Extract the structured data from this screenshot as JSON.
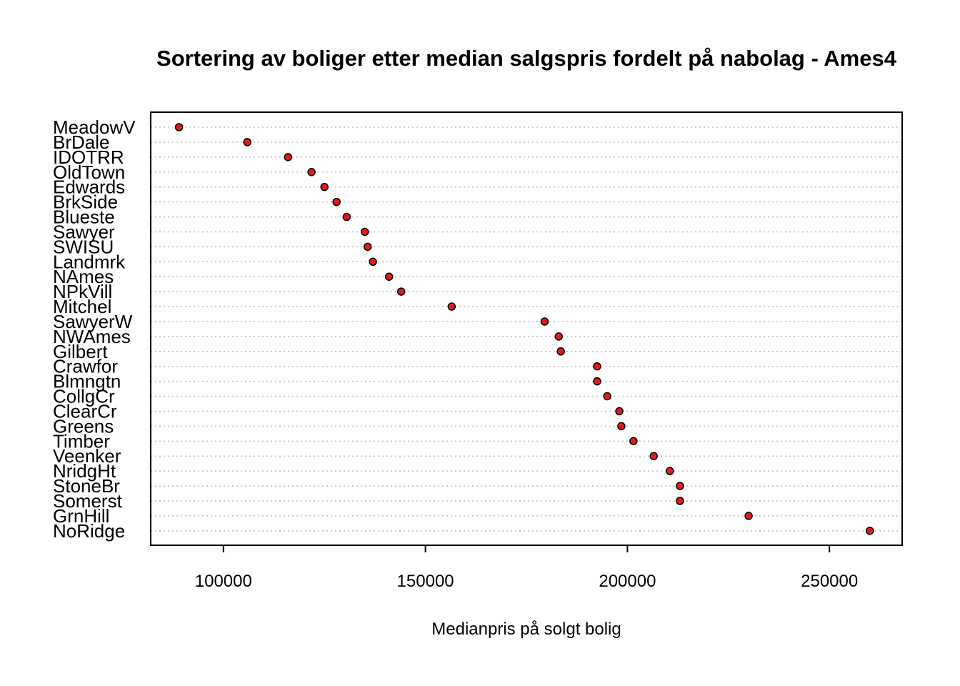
{
  "chart_data": {
    "type": "scatter",
    "title": "Sortering av boliger etter median salgspris fordelt på nabolag - Ames4",
    "xlabel": "Medianpris på solgt bolig",
    "ylabel": "",
    "xlim": [
      82000,
      268000
    ],
    "xticks": [
      100000,
      150000,
      200000,
      250000
    ],
    "grid": "dotted horizontal",
    "point_color": "#e31a1c",
    "point_border": "#000000",
    "categories": [
      "MeadowV",
      "BrDale",
      "IDOTRR",
      "OldTown",
      "Edwards",
      "BrkSide",
      "Blueste",
      "Sawyer",
      "SWISU",
      "Landmrk",
      "NAmes",
      "NPkVill",
      "Mitchel",
      "SawyerW",
      "NWAmes",
      "Gilbert",
      "Crawfor",
      "Blmngtn",
      "CollgCr",
      "ClearCr",
      "Greens",
      "Timber",
      "Veenker",
      "NridgHt",
      "StoneBr",
      "Somerst",
      "GrnHill",
      "NoRidge"
    ],
    "values": [
      89000,
      105900,
      116000,
      121800,
      125000,
      128000,
      130500,
      135000,
      135700,
      137000,
      141000,
      144000,
      156500,
      179500,
      183000,
      183500,
      192500,
      192500,
      195000,
      198000,
      198500,
      201500,
      206500,
      210500,
      213000,
      213000,
      230000,
      260000
    ]
  }
}
